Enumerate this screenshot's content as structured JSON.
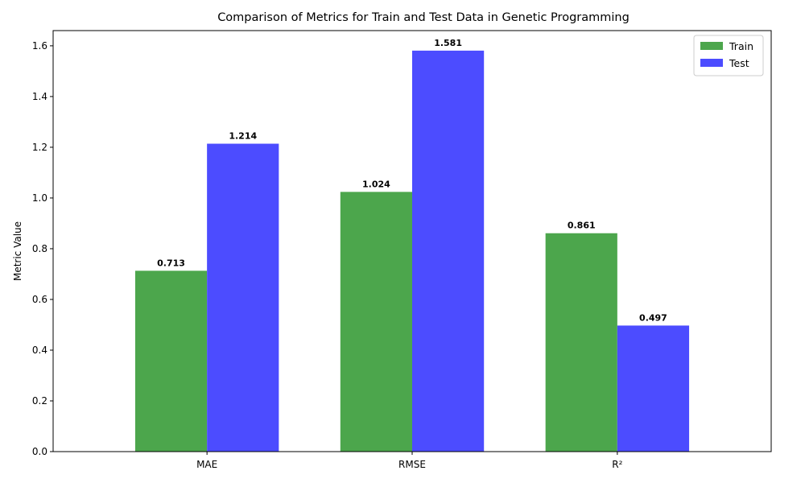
{
  "chart_data": {
    "type": "bar",
    "title": "Comparison of Metrics for Train and Test Data in Genetic Programming",
    "xlabel": "",
    "ylabel": "Metric Value",
    "categories": [
      "MAE",
      "RMSE",
      "R²"
    ],
    "series": [
      {
        "name": "Train",
        "values": [
          0.713,
          1.024,
          0.861
        ],
        "color": "#4ca64c",
        "labels": [
          "0.713",
          "1.024",
          "0.861"
        ]
      },
      {
        "name": "Test",
        "values": [
          1.214,
          1.581,
          0.497
        ],
        "color": "#4c4cff",
        "labels": [
          "1.214",
          "1.581",
          "0.497"
        ]
      }
    ],
    "ylim": [
      0,
      1.66
    ],
    "yticks": [
      0.0,
      0.2,
      0.4,
      0.6,
      0.8,
      1.0,
      1.2,
      1.4,
      1.6
    ],
    "ytick_labels": [
      "0.0",
      "0.2",
      "0.4",
      "0.6",
      "0.8",
      "1.0",
      "1.2",
      "1.4",
      "1.6"
    ],
    "grid": false,
    "legend_position": "top-right"
  }
}
